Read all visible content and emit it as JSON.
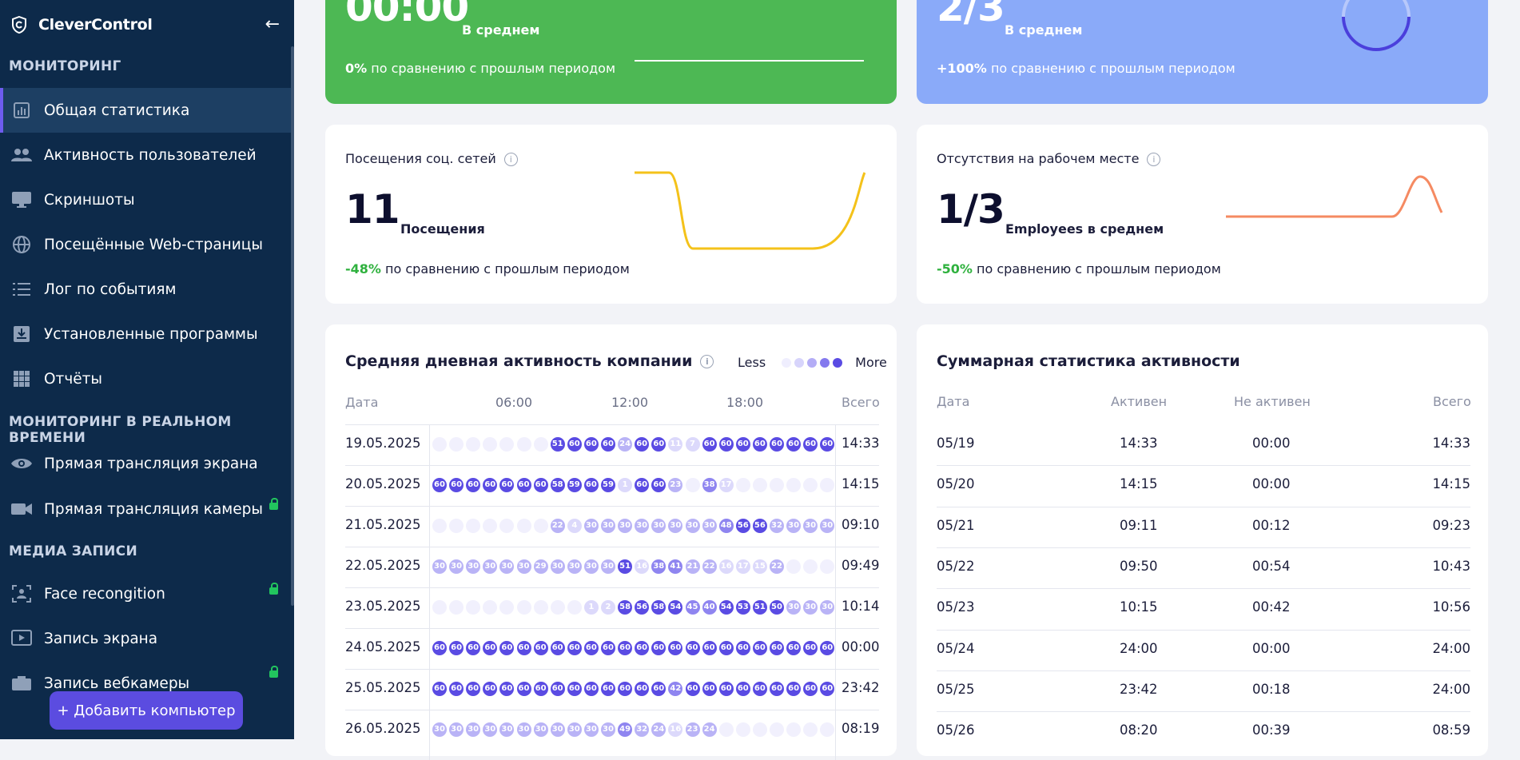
{
  "app": {
    "name": "CleverControl"
  },
  "sidebar": {
    "sections": [
      "Мониторинг",
      "Мониторинг в реальном времени",
      "Медиа записи"
    ],
    "items": [
      {
        "label": "Общая статистика"
      },
      {
        "label": "Активность пользователей"
      },
      {
        "label": "Скриншоты"
      },
      {
        "label": "Посещённые Web-страницы"
      },
      {
        "label": "Лог по событиям"
      },
      {
        "label": "Установленные программы"
      },
      {
        "label": "Отчёты"
      },
      {
        "label": "Прямая трансляция экрана"
      },
      {
        "label": "Прямая трансляция камеры"
      },
      {
        "label": "Face recongition"
      },
      {
        "label": "Запись экрана"
      },
      {
        "label": "Запись вебкамеры"
      }
    ],
    "add_button": "+ Добавить компьютер"
  },
  "cards": {
    "green": {
      "value": "00:00",
      "unit": "В среднем",
      "change": "0%",
      "change_text": "по сравнению с прошлым периодом"
    },
    "blue": {
      "value": "2/3",
      "unit": "В среднем",
      "change": "+100%",
      "change_text": "по сравнению с прошлым периодом"
    },
    "social": {
      "title": "Посещения соц. сетей",
      "value": "11",
      "unit": "Посещения",
      "change": "-48%",
      "change_text": "по сравнению с прошлым периодом"
    },
    "absence": {
      "title": "Отсутствия на рабочем месте",
      "value": "1/3",
      "unit": "Employees в среднем",
      "change": "-50%",
      "change_text": "по сравнению с прошлым периодом"
    }
  },
  "heatmap": {
    "title": "Средняя дневная активность компании",
    "legend_less": "Less",
    "legend_more": "More",
    "col_date": "Дата",
    "col_total": "Всего",
    "hours": [
      "06:00",
      "12:00",
      "18:00"
    ],
    "rows": [
      {
        "date": "19.05.2025",
        "total": "14:33",
        "cells": [
          0,
          0,
          0,
          0,
          0,
          0,
          0,
          51,
          60,
          60,
          60,
          24,
          60,
          60,
          11,
          7,
          60,
          60,
          60,
          60,
          60,
          60,
          60,
          60
        ]
      },
      {
        "date": "20.05.2025",
        "total": "14:15",
        "cells": [
          60,
          60,
          60,
          60,
          60,
          60,
          60,
          58,
          59,
          60,
          59,
          1,
          60,
          60,
          23,
          0,
          38,
          17,
          0,
          0,
          0,
          0,
          0,
          0
        ]
      },
      {
        "date": "21.05.2025",
        "total": "09:10",
        "cells": [
          0,
          0,
          0,
          0,
          0,
          0,
          0,
          22,
          4,
          30,
          30,
          30,
          30,
          30,
          30,
          30,
          30,
          48,
          56,
          56,
          32,
          30,
          30,
          30
        ]
      },
      {
        "date": "22.05.2025",
        "total": "09:49",
        "cells": [
          30,
          30,
          30,
          30,
          30,
          30,
          29,
          30,
          30,
          30,
          30,
          51,
          16,
          38,
          41,
          21,
          22,
          16,
          17,
          15,
          22,
          0,
          0,
          0
        ]
      },
      {
        "date": "23.05.2025",
        "total": "10:14",
        "cells": [
          0,
          0,
          0,
          0,
          0,
          0,
          0,
          0,
          0,
          1,
          2,
          58,
          56,
          58,
          54,
          45,
          40,
          54,
          53,
          51,
          50,
          30,
          30,
          30
        ]
      },
      {
        "date": "24.05.2025",
        "total": "00:00",
        "cells": [
          60,
          60,
          60,
          60,
          60,
          60,
          60,
          60,
          60,
          60,
          60,
          60,
          60,
          60,
          60,
          60,
          60,
          60,
          60,
          60,
          60,
          60,
          60,
          60
        ]
      },
      {
        "date": "25.05.2025",
        "total": "23:42",
        "cells": [
          60,
          60,
          60,
          60,
          60,
          60,
          60,
          60,
          60,
          60,
          60,
          60,
          60,
          60,
          42,
          60,
          60,
          60,
          60,
          60,
          60,
          60,
          60,
          60
        ]
      },
      {
        "date": "26.05.2025",
        "total": "08:19",
        "cells": [
          30,
          30,
          30,
          30,
          30,
          30,
          30,
          30,
          30,
          30,
          30,
          49,
          32,
          24,
          16,
          23,
          24,
          0,
          0,
          0,
          0,
          0,
          0,
          0
        ]
      }
    ]
  },
  "summary": {
    "title": "Суммарная статистика активности",
    "headers": [
      "Дата",
      "Активен",
      "Не активен",
      "Всего"
    ],
    "rows": [
      [
        "05/19",
        "14:33",
        "00:00",
        "14:33"
      ],
      [
        "05/20",
        "14:15",
        "00:00",
        "14:15"
      ],
      [
        "05/21",
        "09:11",
        "00:12",
        "09:23"
      ],
      [
        "05/22",
        "09:50",
        "00:54",
        "10:43"
      ],
      [
        "05/23",
        "10:15",
        "00:42",
        "10:56"
      ],
      [
        "05/24",
        "24:00",
        "00:00",
        "24:00"
      ],
      [
        "05/25",
        "23:42",
        "00:18",
        "24:00"
      ],
      [
        "05/26",
        "08:20",
        "00:39",
        "08:59"
      ]
    ]
  },
  "colors": {
    "sidebar": "#0d2a4a",
    "accent": "#5b4ce0",
    "green": "#4db854",
    "blue": "#8aaaf9",
    "positive": "#2fb13e"
  }
}
